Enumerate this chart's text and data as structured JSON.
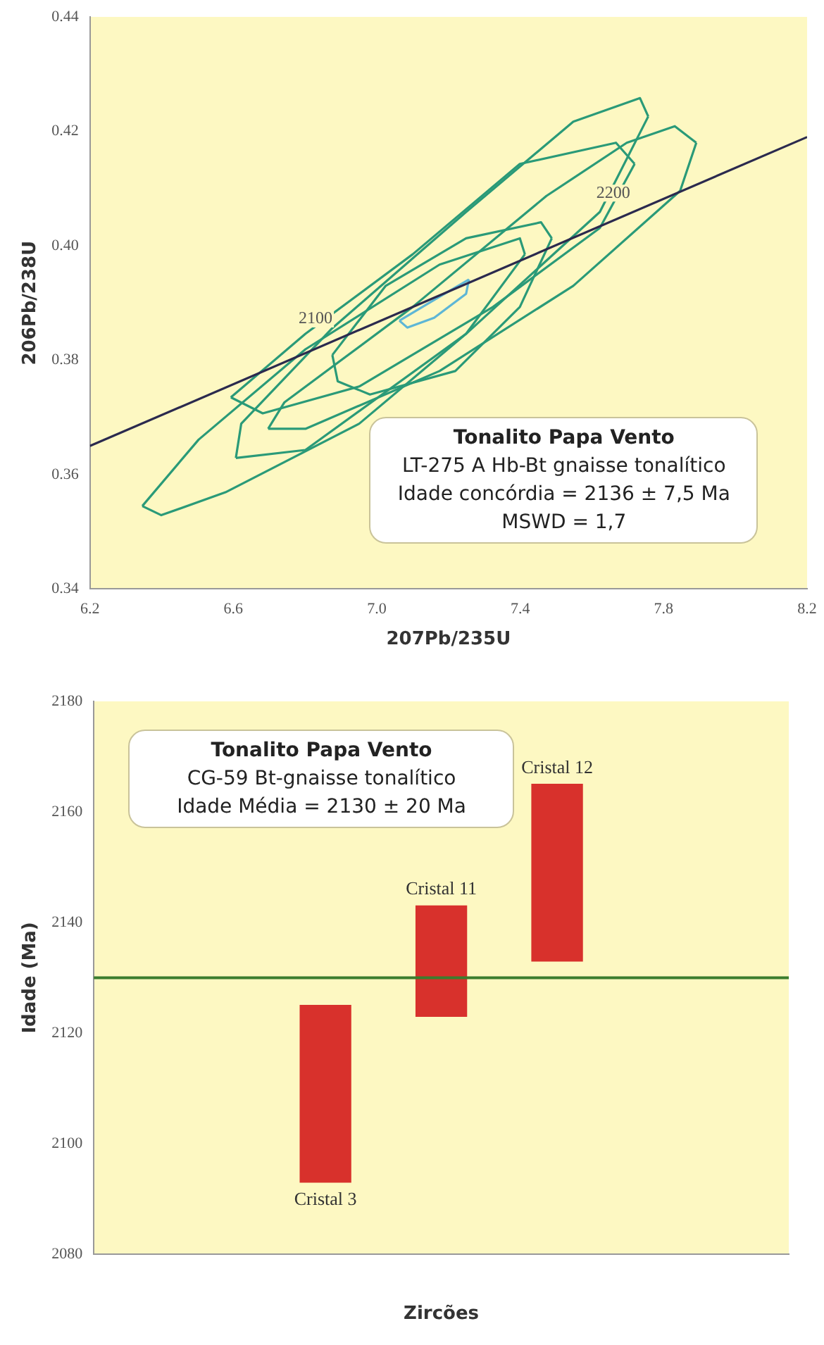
{
  "chart_data": [
    {
      "type": "line",
      "xlabel": "207Pb/235U",
      "ylabel": "206Pb/238U",
      "xlim": [
        6.2,
        8.2
      ],
      "xticks": [
        6.2,
        6.6,
        {
          "value": 7,
          "label": "7.0"
        },
        7.4,
        7.8,
        8.2
      ],
      "ylim": [
        0.34,
        0.44
      ],
      "yticks": [
        0.34,
        0.36,
        0.38,
        {
          "value": 0.4,
          "label": "0.40"
        },
        0.42,
        0.44
      ],
      "grid": false,
      "legend": false,
      "marker": "none",
      "series": [
        {
          "color": "#2b2a4e",
          "x": [
            6.2,
            8.2
          ],
          "values": [
            0.365,
            0.419
          ]
        },
        {
          "color": "#2a9a78",
          "x": [
            6.346,
            6.503,
            6.801,
            7.175,
            7.399,
            7.413
          ],
          "values": [
            0.3545,
            0.3661,
            0.3819,
            0.3967,
            0.4013,
            0.3985
          ]
        },
        {
          "color": "#2a9a78",
          "x": [
            6.346,
            6.399,
            6.578,
            6.951,
            7.249,
            7.413
          ],
          "values": [
            0.3545,
            0.3529,
            0.3569,
            0.3689,
            0.3846,
            0.3985
          ]
        },
        {
          "color": "#2a9a78",
          "x": [
            6.607,
            6.622,
            6.876,
            7.249,
            7.548,
            7.734,
            7.757
          ],
          "values": [
            0.3629,
            0.3689,
            0.3856,
            0.4059,
            0.4217,
            0.4258,
            0.4226
          ]
        },
        {
          "color": "#2a9a78",
          "x": [
            6.607,
            6.801,
            7.249,
            7.622,
            7.757
          ],
          "values": [
            0.3629,
            0.3643,
            0.3846,
            0.4059,
            0.4226
          ]
        },
        {
          "color": "#2a9a78",
          "x": [
            6.697,
            6.742,
            7.1,
            7.473,
            7.697,
            7.831,
            7.891
          ],
          "values": [
            0.368,
            0.3726,
            0.3893,
            0.4087,
            0.418,
            0.4209,
            0.418
          ]
        },
        {
          "color": "#2a9a78",
          "x": [
            6.697,
            6.801,
            7.175,
            7.548,
            7.846,
            7.891
          ],
          "values": [
            0.368,
            0.368,
            0.3781,
            0.393,
            0.4096,
            0.418
          ]
        },
        {
          "color": "#2a9a78",
          "x": [
            6.593,
            6.801,
            7.1,
            7.399,
            7.667,
            7.719
          ],
          "values": [
            0.3735,
            0.3846,
            0.3985,
            0.4143,
            0.418,
            0.4143
          ]
        },
        {
          "color": "#2a9a78",
          "x": [
            6.593,
            6.682,
            6.951,
            7.324,
            7.622,
            7.719
          ],
          "values": [
            0.3735,
            0.3707,
            0.3754,
            0.3893,
            0.4031,
            0.4143
          ]
        },
        {
          "color": "#2a9a78",
          "x": [
            6.876,
            7.025,
            7.249,
            7.458,
            7.488
          ],
          "values": [
            0.3809,
            0.393,
            0.4013,
            0.4041,
            0.4013
          ]
        },
        {
          "color": "#2a9a78",
          "x": [
            6.876,
            6.891,
            6.981,
            7.219,
            7.399,
            7.488
          ],
          "values": [
            0.3809,
            0.3763,
            0.374,
            0.3781,
            0.3893,
            0.4013
          ]
        },
        {
          "color": "#5db6d6",
          "x": [
            7.063,
            7.175,
            7.257
          ],
          "values": [
            0.3869,
            0.3911,
            0.3941
          ]
        },
        {
          "color": "#5db6d6",
          "x": [
            7.063,
            7.085,
            7.16,
            7.249,
            7.257
          ],
          "values": [
            0.3869,
            0.3857,
            0.3874,
            0.3916,
            0.3941
          ]
        }
      ],
      "annotations": [
        {
          "text": "2100",
          "x": 6.9,
          "y": 0.384
        },
        {
          "text": "2200",
          "x": 7.73,
          "y": 0.406
        },
        "Tonalito Papa Vento",
        "LT-275 A Hb-Bt gnaisse tonalítico",
        "Idade concórdia = 2136 ± 7,5 Ma",
        "MSWD = 1,7"
      ]
    },
    {
      "type": "bar",
      "xlabel": "Zircões",
      "ylabel": "Idade (Ma)",
      "categories": [
        null,
        null,
        null
      ],
      "values": [
        32,
        20,
        32
      ],
      "base": [
        2093,
        2123,
        2133
      ],
      "color": "#d8312c",
      "ylim": [
        2080,
        2180
      ],
      "yticks": [
        2080,
        2100,
        2120,
        2140,
        2160,
        2180
      ],
      "grid": false,
      "legend": false,
      "tick_labels": "y",
      "ref_lines": [
        {
          "axis": "y",
          "value": 2130,
          "color": "#3b7d2e"
        }
      ],
      "annotations": [
        {
          "text": "Cristal 3",
          "y": 2093
        },
        {
          "text": "Cristal 11",
          "y": 2143
        },
        {
          "text": "Cristal 12",
          "y": 2165
        },
        "Tonalito Papa Vento",
        "CG-59 Bt-gnaisse tonalítico",
        "Idade Média = 2130 ± 20 Ma"
      ]
    }
  ]
}
